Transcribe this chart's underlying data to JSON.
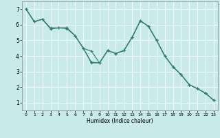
{
  "xlabel": "Humidex (Indice chaleur)",
  "bg_color": "#c8eaea",
  "grid_color": "#b0d8d8",
  "line_color": "#2e7d72",
  "xlim": [
    -0.5,
    23.5
  ],
  "ylim": [
    0.5,
    7.5
  ],
  "xticks": [
    0,
    1,
    2,
    3,
    4,
    5,
    6,
    7,
    8,
    9,
    10,
    11,
    12,
    13,
    14,
    15,
    16,
    17,
    18,
    19,
    20,
    21,
    22,
    23
  ],
  "yticks": [
    1,
    2,
    3,
    4,
    5,
    6,
    7
  ],
  "series1_x": [
    0,
    1,
    2,
    3,
    4,
    5,
    6,
    7,
    8,
    9,
    10,
    11,
    12,
    13,
    14,
    15,
    16,
    17,
    18,
    19,
    20,
    21,
    22,
    23
  ],
  "series1_y": [
    7.0,
    6.2,
    6.35,
    5.8,
    5.8,
    5.8,
    5.3,
    4.5,
    3.6,
    3.55,
    4.35,
    4.15,
    4.35,
    5.2,
    6.25,
    5.9,
    5.0,
    4.0,
    3.3,
    2.8,
    2.15,
    1.9,
    1.6,
    1.15
  ],
  "series2_x": [
    0,
    1,
    2,
    3,
    4,
    5,
    6,
    7,
    8,
    9,
    10,
    11,
    12,
    13,
    14,
    15,
    16,
    17,
    18,
    19,
    20,
    21,
    22,
    23
  ],
  "series2_y": [
    7.0,
    6.2,
    6.35,
    5.75,
    5.8,
    5.75,
    5.3,
    4.5,
    4.3,
    3.55,
    4.35,
    4.15,
    4.35,
    5.2,
    6.25,
    5.9,
    5.0,
    4.0,
    3.3,
    2.8,
    2.15,
    1.9,
    1.6,
    1.15
  ],
  "series3_x": [
    0,
    1,
    2,
    3,
    4,
    5,
    6,
    7,
    8,
    9,
    10,
    11,
    12,
    13,
    14,
    15,
    16,
    17,
    18,
    19,
    20,
    21,
    22,
    23
  ],
  "series3_y": [
    7.0,
    6.2,
    6.35,
    5.75,
    5.8,
    5.8,
    5.3,
    4.5,
    3.55,
    3.55,
    4.35,
    4.15,
    4.35,
    5.2,
    6.25,
    5.9,
    5.0,
    4.0,
    3.3,
    2.8,
    2.15,
    1.9,
    1.6,
    1.15
  ]
}
